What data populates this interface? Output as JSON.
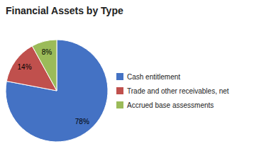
{
  "chart_data": {
    "type": "pie",
    "title": "Financial Assets by Type",
    "categories": [
      "Cash entitlement",
      "Trade and other receivables, net",
      "Accrued base assessments"
    ],
    "values": [
      78,
      14,
      8
    ],
    "value_labels": [
      "78%",
      "14%",
      "8%"
    ],
    "colors": [
      "#4472C4",
      "#C0504D",
      "#9BBB59"
    ],
    "data_labels": true,
    "legend": "right"
  }
}
